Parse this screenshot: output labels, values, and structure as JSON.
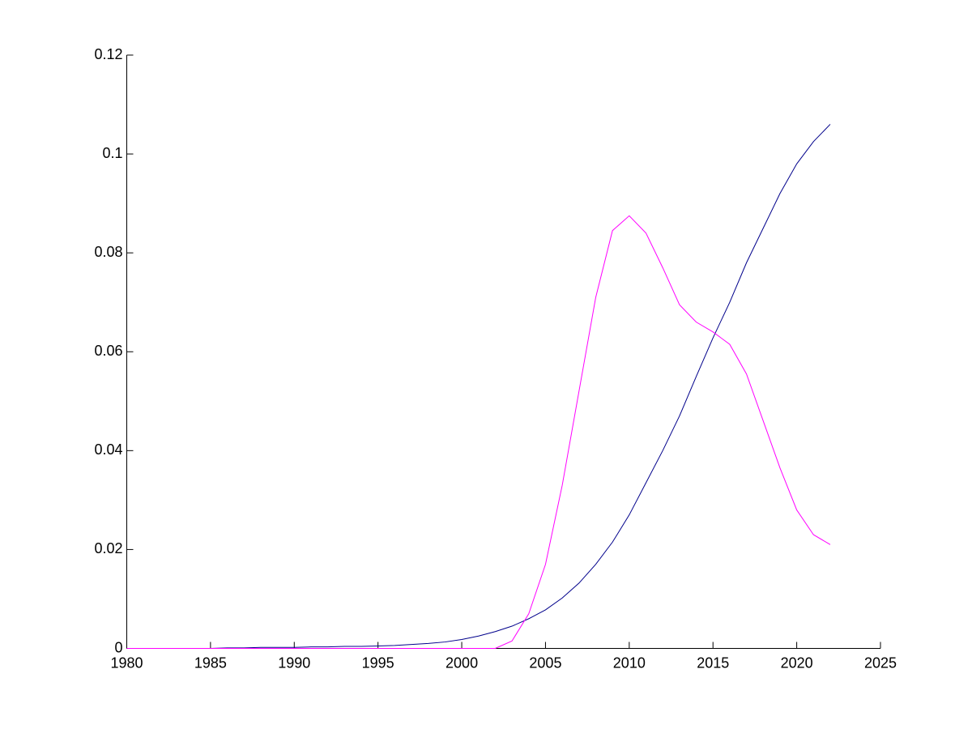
{
  "chart_data": {
    "type": "line",
    "x": [
      1980,
      1981,
      1982,
      1983,
      1984,
      1985,
      1986,
      1987,
      1988,
      1989,
      1990,
      1991,
      1992,
      1993,
      1994,
      1995,
      1996,
      1997,
      1998,
      1999,
      2000,
      2001,
      2002,
      2003,
      2004,
      2005,
      2006,
      2007,
      2008,
      2009,
      2010,
      2011,
      2012,
      2013,
      2014,
      2015,
      2016,
      2017,
      2018,
      2019,
      2020,
      2021,
      2022
    ],
    "series": [
      {
        "color": "#00008b",
        "values": [
          0,
          0,
          0,
          0,
          0,
          0,
          0.0001,
          0.0001,
          0.0002,
          0.0002,
          0.0002,
          0.0003,
          0.0003,
          0.0004,
          0.0004,
          0.0005,
          0.0006,
          0.0008,
          0.001,
          0.0013,
          0.0018,
          0.0025,
          0.0034,
          0.0045,
          0.006,
          0.0078,
          0.0102,
          0.0132,
          0.017,
          0.0215,
          0.027,
          0.0335,
          0.04,
          0.047,
          0.055,
          0.0628,
          0.07,
          0.078,
          0.085,
          0.092,
          0.098,
          0.1025,
          0.106
        ]
      },
      {
        "color": "#ff00ff",
        "values": [
          0,
          0,
          0,
          0,
          0,
          0,
          0,
          0,
          0,
          0,
          0,
          0,
          0,
          0,
          0,
          0,
          0,
          0,
          0,
          0,
          0,
          0,
          0,
          0.0015,
          0.007,
          0.017,
          0.033,
          0.052,
          0.071,
          0.0845,
          0.0875,
          0.084,
          0.077,
          0.0695,
          0.066,
          0.064,
          0.0615,
          0.0555,
          0.046,
          0.0365,
          0.028,
          0.023,
          0.021
        ]
      }
    ],
    "xlim": [
      1980,
      2025
    ],
    "xticks": [
      1980,
      1985,
      1990,
      1995,
      2000,
      2005,
      2010,
      2015,
      2020,
      2025
    ],
    "ylim": [
      0,
      0.12
    ],
    "yticks": [
      0,
      0.02,
      0.04,
      0.06,
      0.08,
      0.1,
      0.12
    ]
  }
}
